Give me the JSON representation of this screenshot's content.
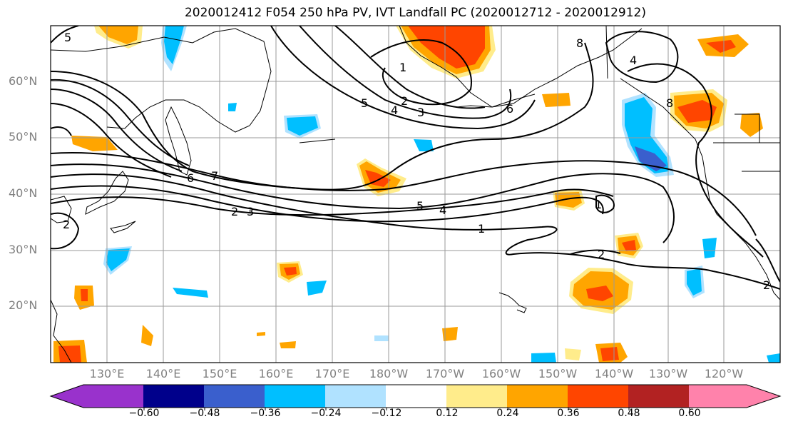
{
  "title": "2020012412 F054 250 hPa PV, IVT Landfall PC (2020012712 - 2020012912)",
  "lat_labels": [
    "60°N",
    "50°N",
    "40°N",
    "30°N",
    "20°N"
  ],
  "lon_labels": [
    "130°E",
    "140°E",
    "150°E",
    "160°E",
    "170°E",
    "180°W",
    "170°W",
    "160°W",
    "150°W",
    "140°W",
    "130°W",
    "120°W"
  ],
  "contour_labels": [
    "5",
    "1",
    "2",
    "3",
    "5",
    "4",
    "6",
    "8",
    "4",
    "7",
    "6",
    "2",
    "3",
    "5",
    "4",
    "1",
    "1",
    "2",
    "2",
    "2",
    "8"
  ],
  "colorbar": {
    "ticks": [
      "−0.60",
      "−0.48",
      "−0.36",
      "−0.24",
      "−0.12",
      "0.12",
      "0.24",
      "0.36",
      "0.48",
      "0.60"
    ],
    "colors": [
      "#9932cc",
      "#00008b",
      "#3a5fcd",
      "#00bfff",
      "#b0e2ff",
      "#ffffff",
      "#ffec8b",
      "#ffa500",
      "#ff4500",
      "#b22222",
      "#ff82ab"
    ]
  }
}
